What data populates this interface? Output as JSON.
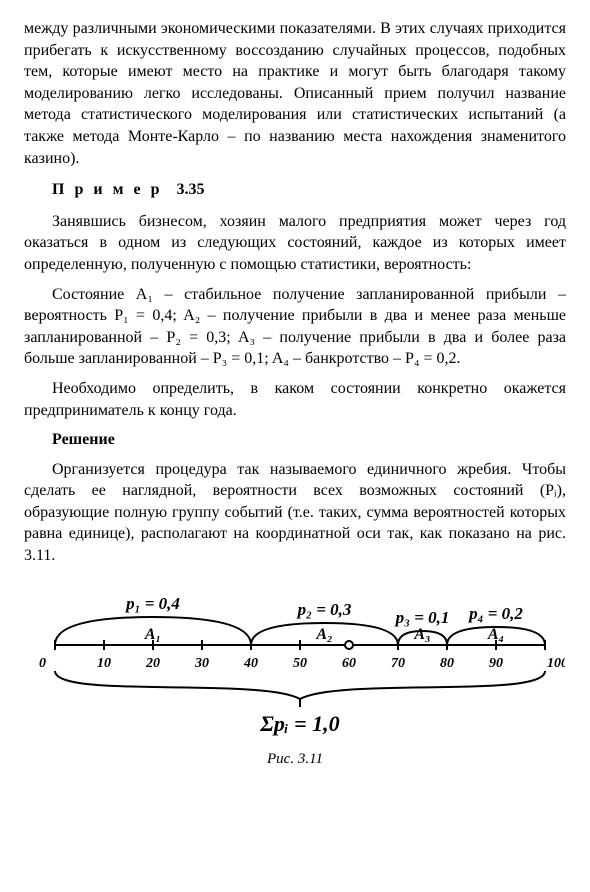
{
  "paragraphs": {
    "intro": "между различными экономическими показателями. В этих случаях приходится прибегать к искусственному воссозданию случайных процессов, подобных тем, которые имеют место на практике и могут быть благодаря такому моделированию легко исследованы. Описанный прием получил название метода статистического моделирования или статистических испытаний (а также метода Монте-Карло – по названию места нахождения знаменитого казино).",
    "example_label_word": "П р и м е р",
    "example_label_num": "3.35",
    "ex1": "Занявшись бизнесом, хозяин малого предприятия может через год оказаться в одном из следующих состояний, каждое из которых имеет определенную, полученную с помощью статистики, вероятность:",
    "ex2": "Состояние A₁ – стабильное получение запланированной прибыли – вероятность P₁ = 0,4; A₂ – получение прибыли в два и менее раза меньше запланированной – P₂ = 0,3; A₃ – получение прибыли в два и более раза больше запланированной – P₃ = 0,1; A₄ – банкротство – P₄ = 0,2.",
    "ex3": "Необходимо определить, в каком состоянии конкретно окажется предприниматель к концу года.",
    "solution_label": "Решение",
    "sol1": "Организуется процедура так называемого единичного жребия. Чтобы сделать ее наглядной, вероятности всех возможных состояний (Pᵢ), образующие полную группу событий (т.е. таких, сумма вероятностей которых равна единице), располагают на координатной оси так, как показано на рис. 3.11."
  },
  "figure": {
    "caption": "Рис. 3.11",
    "sum_label": "Σpᵢ = 1,0",
    "axis": {
      "min": 0,
      "max": 100,
      "ticks": [
        0,
        10,
        20,
        30,
        40,
        50,
        60,
        70,
        80,
        90,
        100
      ],
      "line_color": "#000",
      "line_width": 2
    },
    "segments": [
      {
        "name": "A₁",
        "prob_label": "p₁ = 0,4",
        "start": 0,
        "end": 40,
        "arc_h": 28
      },
      {
        "name": "A₂",
        "prob_label": "p₂ = 0,3",
        "start": 40,
        "end": 70,
        "arc_h": 22
      },
      {
        "name": "A₃",
        "prob_label": "p₃ = 0,1",
        "start": 70,
        "end": 80,
        "arc_h": 14
      },
      {
        "name": "A₄",
        "prob_label": "p₄ = 0,2",
        "start": 80,
        "end": 100,
        "arc_h": 18
      }
    ],
    "styling": {
      "stroke": "#000",
      "stroke_width": 2,
      "background": "#ffffff",
      "tick_fontsize": 14,
      "label_fontsize": 16,
      "prob_fontsize": 17,
      "sum_fontsize": 22
    },
    "brace_depth": 28
  }
}
